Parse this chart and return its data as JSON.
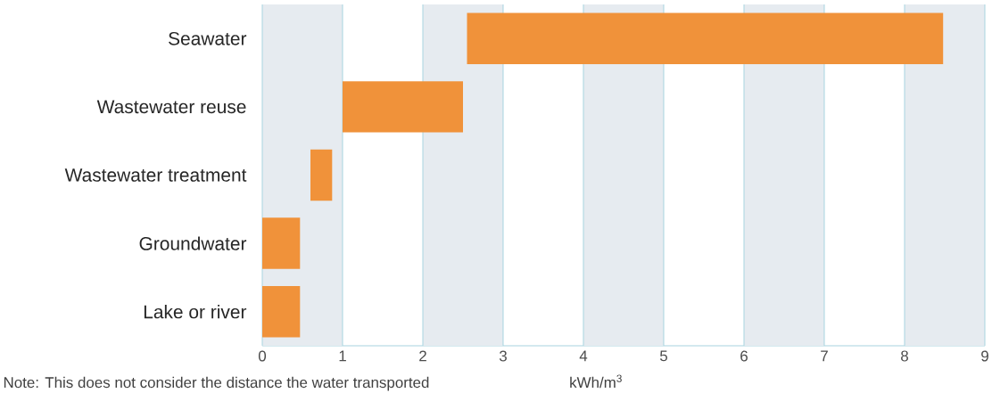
{
  "chart_data": {
    "type": "bar",
    "orientation": "horizontal",
    "categories": [
      "Seawater",
      "Wastewater reuse",
      "Wastewater treatment",
      "Groundwater",
      "Lake or river"
    ],
    "base": [
      2.55,
      1.0,
      0.6,
      0,
      0
    ],
    "values": [
      5.93,
      1.5,
      0.27,
      0.47,
      0.47
    ],
    "color": "#f0923a",
    "xlim": [
      0,
      9
    ],
    "xticks": [
      0,
      1,
      2,
      3,
      4,
      5,
      6,
      7,
      8,
      9
    ],
    "xlabel": "kWh/m$^{3}$",
    "grid": "x",
    "bands": [
      {
        "axis": "x",
        "from": 0,
        "to": 1,
        "color": "#e6ebf0"
      },
      {
        "axis": "x",
        "from": 2,
        "to": 3,
        "color": "#e6ebf0"
      },
      {
        "axis": "x",
        "from": 4,
        "to": 5,
        "color": "#e6ebf0"
      },
      {
        "axis": "x",
        "from": 6,
        "to": 7,
        "color": "#e6ebf0"
      },
      {
        "axis": "x",
        "from": 8,
        "to": 9,
        "color": "#e6ebf0"
      }
    ],
    "annotations": [
      "Note: This does not consider the distance the water transported"
    ]
  }
}
